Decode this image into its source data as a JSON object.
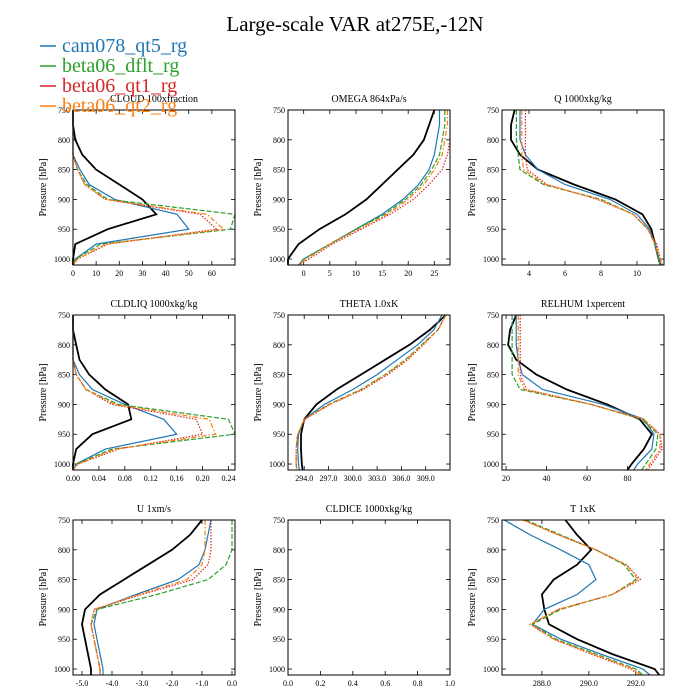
{
  "figure": {
    "title": "Large-scale VAR at275E,-12N",
    "ylabel": "Pressure [hPa]"
  },
  "legend": [
    {
      "name": "cam078_qt5_rg",
      "color": "#1f77b4",
      "dash": "solid"
    },
    {
      "name": "beta06_dflt_rg",
      "color": "#2ca02c",
      "dash": "dash"
    },
    {
      "name": "beta06_qt1_rg",
      "color": "#d62728",
      "dash": "dot"
    },
    {
      "name": "beta06_qt2_rg",
      "color": "#ff7f0e",
      "dash": "dashdot"
    }
  ],
  "colors": {
    "reference": "#000000"
  },
  "chart_data": [
    {
      "type": "line",
      "title": "CLOUD 100xfraction",
      "ylabel": "Pressure [hPa]",
      "xlim": [
        0,
        70
      ],
      "xticks": [
        0,
        10,
        20,
        30,
        40,
        50,
        60
      ],
      "xticklabels": [
        "0",
        "10",
        "20",
        "30",
        "40",
        "50",
        "60"
      ],
      "ylim": [
        750,
        1010
      ],
      "yticks": [
        750,
        800,
        850,
        900,
        950,
        1000
      ],
      "y": [
        750,
        775,
        800,
        825,
        850,
        875,
        900,
        925,
        950,
        975,
        1000,
        1010
      ],
      "series": [
        {
          "values": [
            0,
            0,
            1,
            4,
            10,
            20,
            30,
            36,
            15,
            1,
            0,
            0
          ]
        },
        {
          "name": "cam078_qt5_rg",
          "values": [
            0,
            0,
            0,
            0,
            3,
            7,
            18,
            45,
            50,
            10,
            1,
            0
          ]
        },
        {
          "name": "beta06_dflt_rg",
          "values": [
            0,
            0,
            0,
            0,
            2,
            6,
            15,
            70,
            68,
            12,
            1,
            0
          ]
        },
        {
          "name": "beta06_qt1_rg",
          "values": [
            0,
            0,
            0,
            0,
            2,
            5,
            14,
            55,
            62,
            15,
            2,
            0
          ]
        },
        {
          "name": "beta06_qt2_rg",
          "values": [
            0,
            0,
            0,
            0,
            2,
            5,
            14,
            58,
            65,
            14,
            2,
            0
          ]
        }
      ]
    },
    {
      "type": "line",
      "title": "OMEGA 864xPa/s",
      "ylabel": "Pressure [hPa]",
      "xlim": [
        -3,
        28
      ],
      "xticks": [
        0,
        5,
        10,
        15,
        20,
        25
      ],
      "xticklabels": [
        "0",
        "5",
        "10",
        "15",
        "20",
        "25"
      ],
      "ylim": [
        750,
        1010
      ],
      "yticks": [
        750,
        800,
        850,
        900,
        950,
        1000
      ],
      "y": [
        750,
        775,
        800,
        825,
        850,
        875,
        900,
        925,
        950,
        975,
        1000,
        1010
      ],
      "series": [
        {
          "values": [
            25,
            24,
            23,
            21,
            18,
            15,
            12,
            8,
            3,
            -1,
            -3,
            -3
          ]
        },
        {
          "name": "cam078_qt5_rg",
          "values": [
            26,
            26,
            25.5,
            25,
            24,
            22,
            19,
            15,
            10,
            5,
            0,
            -1
          ]
        },
        {
          "name": "beta06_dflt_rg",
          "values": [
            27,
            27,
            26.5,
            26,
            24.5,
            22.5,
            19.5,
            15.5,
            10,
            5,
            0,
            -1
          ]
        },
        {
          "name": "beta06_qt1_rg",
          "values": [
            28,
            28,
            28,
            27.5,
            26.5,
            24,
            21,
            16.5,
            11,
            5.5,
            1,
            -1
          ]
        },
        {
          "name": "beta06_qt2_rg",
          "values": [
            27.5,
            27.5,
            27,
            26.5,
            25,
            23,
            20,
            16,
            10.5,
            5,
            0.5,
            -1
          ]
        }
      ]
    },
    {
      "type": "line",
      "title": "Q 1000xkg/kg",
      "ylabel": "Pressure [hPa]",
      "xlim": [
        2.5,
        11.5
      ],
      "xticks": [
        4,
        6,
        8,
        10
      ],
      "xticklabels": [
        "4",
        "6",
        "8",
        "10"
      ],
      "ylim": [
        750,
        1010
      ],
      "yticks": [
        750,
        800,
        850,
        900,
        950,
        1000
      ],
      "y": [
        750,
        775,
        800,
        825,
        850,
        875,
        900,
        925,
        950,
        975,
        1000,
        1010
      ],
      "series": [
        {
          "values": [
            3.2,
            3.0,
            3.0,
            3.5,
            4.5,
            6.5,
            8.8,
            10.3,
            10.8,
            11.0,
            11.2,
            11.3
          ]
        },
        {
          "name": "cam078_qt5_rg",
          "values": [
            3.5,
            3.5,
            3.5,
            3.8,
            4.5,
            6.0,
            8.5,
            10.0,
            10.7,
            11.0,
            11.2,
            11.3
          ]
        },
        {
          "name": "beta06_dflt_rg",
          "values": [
            3.3,
            3.3,
            3.3,
            3.4,
            3.5,
            4.8,
            8.0,
            9.8,
            10.6,
            11.0,
            11.2,
            11.3
          ]
        },
        {
          "name": "beta06_qt1_rg",
          "values": [
            3.8,
            3.8,
            3.8,
            3.8,
            3.9,
            5.0,
            7.8,
            9.8,
            10.6,
            11.1,
            11.3,
            11.4
          ]
        },
        {
          "name": "beta06_qt2_rg",
          "values": [
            3.6,
            3.6,
            3.6,
            3.6,
            3.7,
            4.9,
            7.9,
            9.8,
            10.6,
            11.0,
            11.3,
            11.35
          ]
        }
      ]
    },
    {
      "type": "line",
      "title": "CLDLIQ 1000xkg/kg",
      "ylabel": "Pressure [hPa]",
      "xlim": [
        0,
        0.25
      ],
      "xticks": [
        0,
        0.04,
        0.08,
        0.12,
        0.16,
        0.2,
        0.24
      ],
      "xticklabels": [
        "0.00",
        "0.04",
        "0.08",
        "0.12",
        "0.16",
        "0.20",
        "0.24"
      ],
      "ylim": [
        750,
        1010
      ],
      "yticks": [
        750,
        800,
        850,
        900,
        950,
        1000
      ],
      "y": [
        750,
        775,
        800,
        825,
        850,
        875,
        900,
        925,
        950,
        975,
        1000,
        1010
      ],
      "series": [
        {
          "values": [
            0,
            0,
            0.005,
            0.01,
            0.025,
            0.05,
            0.085,
            0.09,
            0.03,
            0.005,
            0,
            0
          ]
        },
        {
          "name": "cam078_qt5_rg",
          "values": [
            0,
            0,
            0,
            0,
            0.01,
            0.03,
            0.08,
            0.14,
            0.16,
            0.05,
            0.005,
            0
          ]
        },
        {
          "name": "beta06_dflt_rg",
          "values": [
            0,
            0,
            0,
            0,
            0.005,
            0.02,
            0.07,
            0.24,
            0.25,
            0.06,
            0.005,
            0
          ]
        },
        {
          "name": "beta06_qt1_rg",
          "values": [
            0,
            0,
            0,
            0,
            0.005,
            0.02,
            0.06,
            0.19,
            0.2,
            0.07,
            0.008,
            0
          ]
        },
        {
          "name": "beta06_qt2_rg",
          "values": [
            0,
            0,
            0,
            0,
            0.005,
            0.02,
            0.065,
            0.21,
            0.22,
            0.065,
            0.008,
            0
          ]
        }
      ]
    },
    {
      "type": "line",
      "title": "THETA 1.0xK",
      "ylabel": "Pressure [hPa]",
      "xlim": [
        292,
        312
      ],
      "xticks": [
        294,
        297,
        300,
        303,
        306,
        309
      ],
      "xticklabels": [
        "294.0",
        "297.0",
        "300.0",
        "303.0",
        "306.0",
        "309.0"
      ],
      "ylim": [
        750,
        1010
      ],
      "yticks": [
        750,
        800,
        850,
        900,
        950,
        1000
      ],
      "y": [
        750,
        775,
        800,
        825,
        850,
        875,
        900,
        925,
        950,
        975,
        1000,
        1010
      ],
      "series": [
        {
          "values": [
            311.5,
            309.5,
            307.0,
            304.0,
            301.0,
            298.0,
            295.5,
            294.0,
            293.6,
            293.6,
            293.7,
            293.8
          ]
        },
        {
          "name": "cam078_qt5_rg",
          "values": [
            311.0,
            310.0,
            308.0,
            305.5,
            303.0,
            300.0,
            296.5,
            294.0,
            293.3,
            293.2,
            293.3,
            293.4
          ]
        },
        {
          "name": "beta06_dflt_rg",
          "values": [
            311.5,
            310.5,
            308.5,
            306.5,
            304.0,
            301.0,
            297.0,
            294.0,
            293.2,
            293.0,
            293.0,
            293.1
          ]
        },
        {
          "name": "beta06_qt1_rg",
          "values": [
            311.5,
            310.5,
            308.7,
            306.8,
            304.3,
            301.3,
            297.2,
            294.1,
            293.2,
            293.0,
            293.0,
            293.1
          ]
        },
        {
          "name": "beta06_qt2_rg",
          "values": [
            311.5,
            310.5,
            308.6,
            306.6,
            304.1,
            301.1,
            297.1,
            294.0,
            293.2,
            293.0,
            293.0,
            293.1
          ]
        }
      ]
    },
    {
      "type": "line",
      "title": "RELHUM 1xpercent",
      "ylabel": "Pressure [hPa]",
      "xlim": [
        18,
        98
      ],
      "xticks": [
        20,
        40,
        60,
        80
      ],
      "xticklabels": [
        "20",
        "40",
        "60",
        "80"
      ],
      "ylim": [
        750,
        1010
      ],
      "yticks": [
        750,
        800,
        850,
        900,
        950,
        1000
      ],
      "y": [
        750,
        775,
        800,
        825,
        850,
        875,
        900,
        925,
        950,
        975,
        1000,
        1010
      ],
      "series": [
        {
          "values": [
            25,
            22,
            21,
            25,
            35,
            50,
            70,
            86,
            92,
            88,
            82,
            80
          ]
        },
        {
          "name": "cam078_qt5_rg",
          "values": [
            25,
            25,
            25,
            26,
            28,
            38,
            68,
            88,
            93,
            92,
            85,
            83
          ]
        },
        {
          "name": "beta06_dflt_rg",
          "values": [
            23,
            23,
            23,
            23,
            23,
            27,
            62,
            87,
            95,
            94,
            89,
            87
          ]
        },
        {
          "name": "beta06_qt1_rg",
          "values": [
            27,
            27,
            27,
            27,
            27,
            30,
            62,
            88,
            96,
            97,
            92,
            90
          ]
        },
        {
          "name": "beta06_qt2_rg",
          "values": [
            26,
            26,
            26,
            26,
            26,
            29,
            62,
            88,
            96,
            96,
            91,
            89
          ]
        }
      ]
    },
    {
      "type": "line",
      "title": "U 1xm/s",
      "ylabel": "Pressure [hPa]",
      "xlim": [
        -5.3,
        0.1
      ],
      "xticks": [
        -5,
        -4,
        -3,
        -2,
        -1,
        0
      ],
      "xticklabels": [
        "-5.0",
        "-4.0",
        "-3.0",
        "-2.0",
        "-1.0",
        "0.0"
      ],
      "ylim": [
        750,
        1010
      ],
      "yticks": [
        750,
        800,
        850,
        900,
        950,
        1000
      ],
      "y": [
        750,
        775,
        800,
        825,
        850,
        875,
        900,
        925,
        950,
        975,
        1000,
        1010
      ],
      "series": [
        {
          "values": [
            -1.0,
            -1.4,
            -2.0,
            -2.8,
            -3.6,
            -4.4,
            -4.9,
            -5.0,
            -4.9,
            -4.8,
            -4.7,
            -4.7
          ]
        },
        {
          "name": "cam078_qt5_rg",
          "values": [
            -0.7,
            -0.8,
            -0.9,
            -1.1,
            -1.8,
            -3.2,
            -4.5,
            -4.6,
            -4.5,
            -4.4,
            -4.3,
            -4.3
          ]
        },
        {
          "name": "beta06_dflt_rg",
          "values": [
            0.0,
            0.0,
            0.0,
            -0.2,
            -0.8,
            -2.5,
            -4.5,
            -4.7,
            -4.6,
            -4.5,
            -4.4,
            -4.4
          ]
        },
        {
          "name": "beta06_qt1_rg",
          "values": [
            -0.7,
            -0.7,
            -0.7,
            -0.8,
            -1.3,
            -3.0,
            -4.6,
            -4.7,
            -4.6,
            -4.5,
            -4.4,
            -4.4
          ]
        },
        {
          "name": "beta06_qt2_rg",
          "values": [
            -0.9,
            -0.9,
            -0.9,
            -1.0,
            -1.5,
            -3.1,
            -4.6,
            -4.7,
            -4.6,
            -4.5,
            -4.4,
            -4.4
          ]
        }
      ]
    },
    {
      "type": "line",
      "title": "CLDICE 1000xkg/kg",
      "ylabel": "Pressure [hPa]",
      "xlim": [
        0,
        1
      ],
      "xticks": [
        0,
        0.2,
        0.4,
        0.6,
        0.8,
        1.0
      ],
      "xticklabels": [
        "0.0",
        "0.2",
        "0.4",
        "0.6",
        "0.8",
        "1.0"
      ],
      "ylim": [
        750,
        1010
      ],
      "yticks": [
        750,
        800,
        850,
        900,
        950,
        1000
      ],
      "y": [],
      "series": []
    },
    {
      "type": "line",
      "title": "T 1xK",
      "ylabel": "Pressure [hPa]",
      "xlim": [
        286.3,
        293.2
      ],
      "xticks": [
        288,
        290,
        292
      ],
      "xticklabels": [
        "288.0",
        "290.0",
        "292.0"
      ],
      "ylim": [
        750,
        1010
      ],
      "yticks": [
        750,
        800,
        850,
        900,
        950,
        1000
      ],
      "y": [
        750,
        775,
        800,
        825,
        850,
        875,
        900,
        925,
        950,
        975,
        1000,
        1010
      ],
      "series": [
        {
          "values": [
            289.0,
            289.5,
            290.1,
            289.5,
            288.5,
            288.0,
            288.1,
            288.3,
            289.5,
            291.0,
            292.8,
            293.0
          ]
        },
        {
          "name": "cam078_qt5_rg",
          "values": [
            286.4,
            287.5,
            288.8,
            290.0,
            290.3,
            289.5,
            288.1,
            287.6,
            288.8,
            290.5,
            292.3,
            292.6
          ]
        },
        {
          "name": "beta06_dflt_rg",
          "values": [
            287.3,
            288.8,
            290.3,
            291.5,
            292.0,
            291.0,
            288.8,
            287.6,
            288.6,
            290.3,
            292.0,
            292.3
          ]
        },
        {
          "name": "beta06_qt1_rg",
          "values": [
            287.2,
            288.7,
            290.3,
            291.6,
            292.2,
            291.0,
            288.7,
            287.5,
            288.5,
            290.1,
            291.8,
            292.1
          ]
        },
        {
          "name": "beta06_qt2_rg",
          "values": [
            287.2,
            288.7,
            290.3,
            291.6,
            292.1,
            291.0,
            288.7,
            287.5,
            288.5,
            290.2,
            291.9,
            292.2
          ]
        }
      ]
    }
  ]
}
